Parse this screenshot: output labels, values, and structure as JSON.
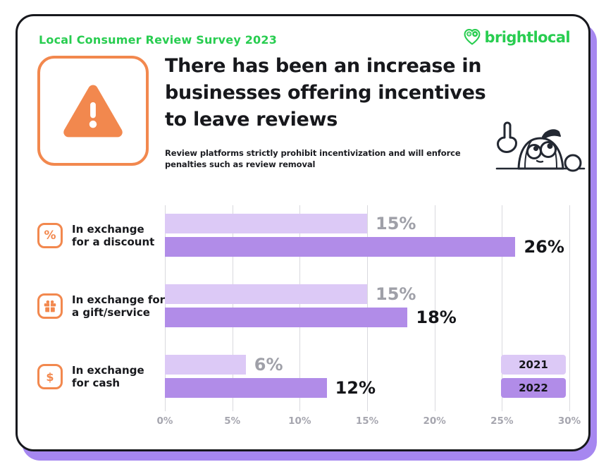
{
  "frame": {
    "background": "#ffffff",
    "card_border_color": "#17181d",
    "card_shadow_color": "#a687f0"
  },
  "header": {
    "survey_label": "Local Consumer Review Survey 2023",
    "survey_label_color": "#28cd50",
    "brand_name": "brightlocal",
    "brand_color": "#28cd50"
  },
  "hero": {
    "title_lines": [
      "There has been an increase in",
      "businesses offering incentives",
      "to leave reviews"
    ],
    "subtitle_lines": [
      "Review platforms strictly prohibit incentivization and will enforce",
      "penalties such as review removal"
    ],
    "warning_icon": "warning-triangle-icon",
    "accent_orange": "#f2884e",
    "mascot": "peeking-mascot-pointing-up"
  },
  "chart_data": {
    "type": "bar",
    "orientation": "horizontal",
    "x_min": 0,
    "x_max": 30,
    "x_ticks": [
      "0%",
      "5%",
      "10%",
      "15%",
      "20%",
      "25%",
      "30%"
    ],
    "grid": true,
    "categories": [
      {
        "icon": "percent",
        "label_lines": [
          "In exchange",
          "for a discount"
        ]
      },
      {
        "icon": "gift",
        "label_lines": [
          "In exchange for",
          "a gift/service"
        ]
      },
      {
        "icon": "dollar",
        "label_lines": [
          "In exchange",
          "for cash"
        ]
      }
    ],
    "series": [
      {
        "name": "2021",
        "color": "#dcc9f6",
        "label_color": "#9fa0a8",
        "values": [
          15,
          15,
          6
        ]
      },
      {
        "name": "2022",
        "color": "#b18ce8",
        "label_color": "#141519",
        "values": [
          26,
          18,
          12
        ]
      }
    ],
    "value_label_suffix": "%",
    "legend_position": "right-bottom",
    "axis_label_color": "#a6a6af",
    "gridline_color": "#d9d9de"
  }
}
